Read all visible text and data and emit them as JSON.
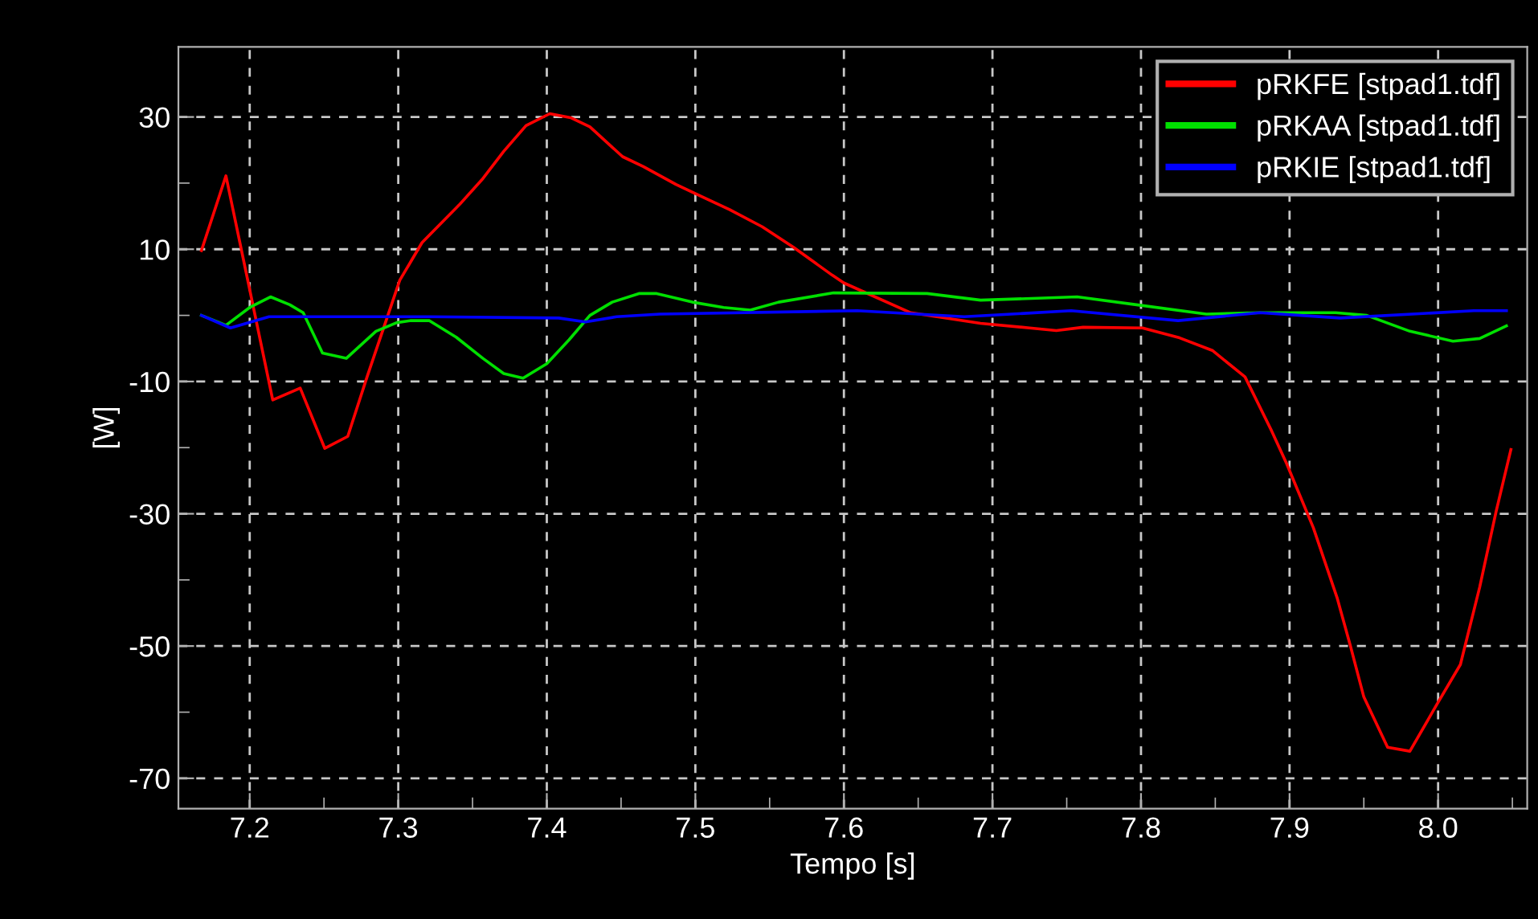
{
  "chart_data": {
    "type": "line",
    "xlabel": "Tempo [s]",
    "ylabel": "[W]",
    "xlim": [
      7.152,
      8.06
    ],
    "ylim": [
      -74.6,
      40.6
    ],
    "xticks": [
      7.2,
      {
        "value": 7.25,
        "label": null
      },
      7.3,
      {
        "value": 7.35,
        "label": null
      },
      7.4,
      {
        "value": 7.45,
        "label": null
      },
      7.5,
      {
        "value": 7.55,
        "label": null
      },
      7.6,
      {
        "value": 7.65,
        "label": null
      },
      7.7,
      {
        "value": 7.75,
        "label": null
      },
      7.8,
      {
        "value": 7.85,
        "label": null
      },
      7.9,
      {
        "value": 7.95,
        "label": null
      },
      {
        "value": 8.0,
        "label": "8.0"
      },
      {
        "value": 8.05,
        "label": null
      }
    ],
    "yticks": [
      30,
      {
        "value": 20,
        "label": null
      },
      10,
      {
        "value": 0,
        "label": null
      },
      -10,
      {
        "value": -20,
        "label": null
      },
      -30,
      {
        "value": -40,
        "label": null
      },
      -50,
      {
        "value": -60,
        "label": null
      },
      -70
    ],
    "grid": true,
    "legend": "top right",
    "line_style": "solid",
    "marker": "none",
    "series": [
      {
        "name": "pRKFE [stpad1.tdf]",
        "color": "#ff0000",
        "x": [
          7.1675,
          7.184,
          7.2155,
          7.234,
          7.2505,
          7.266,
          7.279,
          7.301,
          7.316,
          7.341,
          7.357,
          7.371,
          7.386,
          7.402,
          7.416,
          7.429,
          7.451,
          7.465,
          7.487,
          7.501,
          7.523,
          7.545,
          7.566,
          7.592,
          7.6,
          7.645,
          7.692,
          7.725,
          7.743,
          7.761,
          7.801,
          7.826,
          7.848,
          7.87,
          7.888,
          7.898,
          7.916,
          7.932,
          7.941,
          7.95,
          7.966,
          7.981,
          7.999,
          8.015,
          8.028,
          8.039,
          8.049
        ],
        "values": [
          9.8,
          21.1,
          -12.8,
          -11.0,
          -20.1,
          -18.3,
          -9.3,
          5.3,
          11.0,
          16.7,
          20.7,
          24.8,
          28.7,
          30.5,
          29.9,
          28.5,
          24.0,
          22.5,
          19.8,
          18.3,
          16.0,
          13.4,
          10.3,
          6.1,
          4.9,
          0.4,
          -1.2,
          -1.9,
          -2.3,
          -1.8,
          -1.9,
          -3.4,
          -5.3,
          -9.3,
          -17.5,
          -22.4,
          -32.1,
          -42.7,
          -50.0,
          -57.7,
          -65.3,
          -65.9,
          -58.9,
          -52.8,
          -41.1,
          -29.7,
          -20.3
        ]
      },
      {
        "name": "pRKAA [stpad1.tdf]",
        "color": "#00e000",
        "x": [
          7.1675,
          7.184,
          7.2,
          7.214,
          7.227,
          7.236,
          7.249,
          7.265,
          7.285,
          7.299,
          7.308,
          7.321,
          7.339,
          7.357,
          7.371,
          7.384,
          7.4,
          7.415,
          7.429,
          7.444,
          7.462,
          7.474,
          7.498,
          7.519,
          7.537,
          7.556,
          7.593,
          7.656,
          7.692,
          7.757,
          7.797,
          7.844,
          7.88,
          7.931,
          7.952,
          7.981,
          8.01,
          8.028,
          8.046
        ],
        "values": [
          0,
          -1.5,
          1.2,
          2.8,
          1.6,
          0.4,
          -5.7,
          -6.5,
          -2.4,
          -1.1,
          -0.8,
          -0.8,
          -3.3,
          -6.5,
          -8.8,
          -9.5,
          -7.3,
          -3.7,
          0,
          2.0,
          3.3,
          3.3,
          2.0,
          1.2,
          0.8,
          2.0,
          3.4,
          3.3,
          2.3,
          2.8,
          1.6,
          0.2,
          0.4,
          0.4,
          0,
          -2.4,
          -3.9,
          -3.5,
          -1.6
        ]
      },
      {
        "name": "pRKIE [stpad1.tdf]",
        "color": "#0000ff",
        "x": [
          7.1675,
          7.187,
          7.213,
          7.245,
          7.321,
          7.408,
          7.426,
          7.447,
          7.476,
          7.609,
          7.681,
          7.753,
          7.825,
          7.88,
          7.934,
          8.024,
          8.046
        ],
        "values": [
          0,
          -1.9,
          -0.2,
          -0.2,
          -0.2,
          -0.4,
          -1.0,
          -0.2,
          0.2,
          0.7,
          -0.2,
          0.7,
          -0.8,
          0.4,
          -0.4,
          0.7,
          0.7
        ]
      }
    ]
  }
}
